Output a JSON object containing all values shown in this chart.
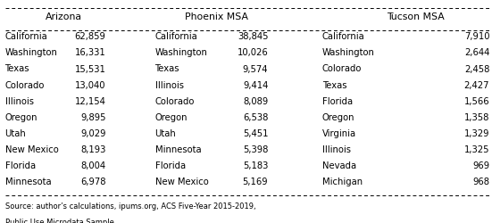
{
  "headers": [
    "",
    "Arizona",
    "",
    "Phoenix MSA",
    "",
    "Tucson MSA"
  ],
  "col_headers": [
    "Arizona",
    "Phoenix MSA",
    "Tucson MSA"
  ],
  "arizona": [
    [
      "California",
      "62,859"
    ],
    [
      "Washington",
      "16,331"
    ],
    [
      "Texas",
      "15,531"
    ],
    [
      "Colorado",
      "13,040"
    ],
    [
      "Illinois",
      "12,154"
    ],
    [
      "Oregon",
      "9,895"
    ],
    [
      "Utah",
      "9,029"
    ],
    [
      "New Mexico",
      "8,193"
    ],
    [
      "Florida",
      "8,004"
    ],
    [
      "Minnesota",
      "6,978"
    ]
  ],
  "phoenix": [
    [
      "California",
      "38,845"
    ],
    [
      "Washington",
      "10,026"
    ],
    [
      "Texas",
      "9,574"
    ],
    [
      "Illinois",
      "9,414"
    ],
    [
      "Colorado",
      "8,089"
    ],
    [
      "Oregon",
      "6,538"
    ],
    [
      "Utah",
      "5,451"
    ],
    [
      "Minnesota",
      "5,398"
    ],
    [
      "Florida",
      "5,183"
    ],
    [
      "New Mexico",
      "5,169"
    ]
  ],
  "tucson": [
    [
      "California",
      "7,910"
    ],
    [
      "Washington",
      "2,644"
    ],
    [
      "Colorado",
      "2,458"
    ],
    [
      "Texas",
      "2,427"
    ],
    [
      "Florida",
      "1,566"
    ],
    [
      "Oregon",
      "1,358"
    ],
    [
      "Virginia",
      "1,329"
    ],
    [
      "Illinois",
      "1,325"
    ],
    [
      "Nevada",
      "969"
    ],
    [
      "Michigan",
      "968"
    ]
  ],
  "footnote1": "Source: author’s calculations, ipums.org, ACS Five-Year 2015-2019,",
  "footnote2": "Public Use Microdata Sample",
  "bg_color": "#ffffff",
  "font_size": 7.2,
  "header_font_size": 7.8
}
